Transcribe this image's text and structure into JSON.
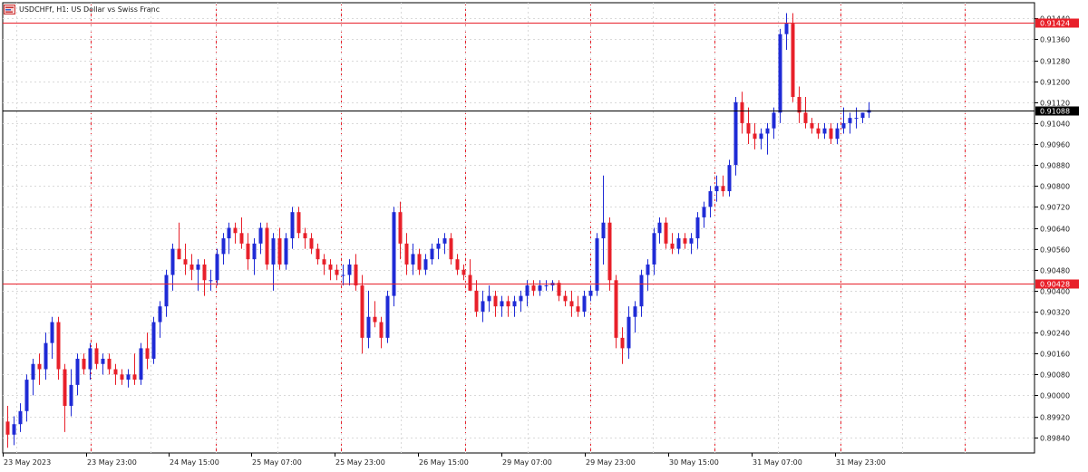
{
  "header": {
    "title": "USDCHFf, H1:  US Dollar vs Swiss Franc",
    "icon": "chart-window-icon"
  },
  "colors": {
    "bull": "#1f2bd6",
    "bear": "#e8202a",
    "level_line": "#e8202a",
    "bid_line": "#000000",
    "period_sep": "#e8202a",
    "grid": "#d9d9d9",
    "axis": "#000000"
  },
  "chart_data": {
    "type": "candlestick",
    "symbol": "USDCHFf",
    "timeframe": "H1",
    "ylim": [
      0.8978,
      0.915
    ],
    "y_ticks": [
      "0.89840",
      "0.89920",
      "0.90000",
      "0.90080",
      "0.90160",
      "0.90240",
      "0.90320",
      "0.90400",
      "0.90480",
      "0.90560",
      "0.90640",
      "0.90720",
      "0.90800",
      "0.90880",
      "0.90960",
      "0.91040",
      "0.91120",
      "0.91200",
      "0.91280",
      "0.91360",
      "0.91440"
    ],
    "x_labels": [
      "23 May 2023",
      "23 May 23:00",
      "24 May 15:00",
      "25 May 07:00",
      "25 May 23:00",
      "26 May 15:00",
      "29 May 07:00",
      "29 May 23:00",
      "30 May 15:00",
      "31 May 07:00",
      "31 May 23:00"
    ],
    "horizontal_levels": [
      {
        "price": 0.91424,
        "label": "0.91424",
        "kind": "level"
      },
      {
        "price": 0.91088,
        "label": "0.91088",
        "kind": "bid"
      },
      {
        "price": 0.90428,
        "label": "0.90428",
        "kind": "level"
      }
    ],
    "ohlc": [
      [
        0.899,
        0.8996,
        0.898,
        0.8985
      ],
      [
        0.8985,
        0.8992,
        0.8981,
        0.8989
      ],
      [
        0.8989,
        0.8997,
        0.8986,
        0.8994
      ],
      [
        0.8994,
        0.9008,
        0.899,
        0.9006
      ],
      [
        0.9006,
        0.9014,
        0.9,
        0.9012
      ],
      [
        0.9012,
        0.9016,
        0.9004,
        0.901
      ],
      [
        0.901,
        0.9024,
        0.9006,
        0.902
      ],
      [
        0.902,
        0.903,
        0.9014,
        0.9028
      ],
      [
        0.9028,
        0.903,
        0.9006,
        0.901
      ],
      [
        0.901,
        0.9012,
        0.8986,
        0.8996
      ],
      [
        0.8996,
        0.901,
        0.8992,
        0.9004
      ],
      [
        0.9004,
        0.9016,
        0.9,
        0.9014
      ],
      [
        0.9014,
        0.9016,
        0.9008,
        0.901
      ],
      [
        0.901,
        0.902,
        0.9006,
        0.9018
      ],
      [
        0.9018,
        0.902,
        0.901,
        0.9012
      ],
      [
        0.9012,
        0.9016,
        0.9008,
        0.9014
      ],
      [
        0.9014,
        0.9016,
        0.9008,
        0.901
      ],
      [
        0.901,
        0.9012,
        0.9004,
        0.9008
      ],
      [
        0.9008,
        0.901,
        0.9004,
        0.9006
      ],
      [
        0.9006,
        0.901,
        0.9003,
        0.9008
      ],
      [
        0.9008,
        0.9016,
        0.9004,
        0.9006
      ],
      [
        0.9006,
        0.902,
        0.9004,
        0.9018
      ],
      [
        0.9018,
        0.9024,
        0.901,
        0.9014
      ],
      [
        0.9014,
        0.903,
        0.9012,
        0.9028
      ],
      [
        0.9028,
        0.9036,
        0.9022,
        0.9034
      ],
      [
        0.9034,
        0.9048,
        0.903,
        0.9046
      ],
      [
        0.9046,
        0.9058,
        0.904,
        0.9056
      ],
      [
        0.9056,
        0.9066,
        0.9052,
        0.9052
      ],
      [
        0.9052,
        0.9058,
        0.9046,
        0.905
      ],
      [
        0.905,
        0.9054,
        0.9044,
        0.9048
      ],
      [
        0.9048,
        0.9052,
        0.904,
        0.905
      ],
      [
        0.905,
        0.9052,
        0.9038,
        0.9044
      ],
      [
        0.9044,
        0.9048,
        0.904,
        0.9044
      ],
      [
        0.9044,
        0.9056,
        0.9042,
        0.9054
      ],
      [
        0.9054,
        0.9062,
        0.905,
        0.906
      ],
      [
        0.906,
        0.9066,
        0.9054,
        0.9064
      ],
      [
        0.9064,
        0.9066,
        0.9058,
        0.9062
      ],
      [
        0.9062,
        0.9068,
        0.9056,
        0.9058
      ],
      [
        0.9058,
        0.9062,
        0.9048,
        0.9052
      ],
      [
        0.9052,
        0.906,
        0.9046,
        0.9058
      ],
      [
        0.9058,
        0.9066,
        0.9054,
        0.9064
      ],
      [
        0.9064,
        0.9066,
        0.9048,
        0.905
      ],
      [
        0.905,
        0.9062,
        0.904,
        0.906
      ],
      [
        0.906,
        0.9064,
        0.9048,
        0.905
      ],
      [
        0.905,
        0.9062,
        0.9048,
        0.906
      ],
      [
        0.906,
        0.9072,
        0.9056,
        0.907
      ],
      [
        0.907,
        0.9072,
        0.906,
        0.9062
      ],
      [
        0.9062,
        0.9064,
        0.9056,
        0.906
      ],
      [
        0.906,
        0.9062,
        0.9054,
        0.9056
      ],
      [
        0.9056,
        0.9058,
        0.905,
        0.9052
      ],
      [
        0.9052,
        0.9054,
        0.9046,
        0.905
      ],
      [
        0.905,
        0.9052,
        0.9044,
        0.9048
      ],
      [
        0.9048,
        0.905,
        0.9044,
        0.9046
      ],
      [
        0.9046,
        0.905,
        0.9042,
        0.9046
      ],
      [
        0.9046,
        0.9052,
        0.9042,
        0.905
      ],
      [
        0.905,
        0.9054,
        0.904,
        0.9042
      ],
      [
        0.9042,
        0.9046,
        0.9016,
        0.9022
      ],
      [
        0.9022,
        0.904,
        0.9018,
        0.903
      ],
      [
        0.903,
        0.9036,
        0.9026,
        0.9028
      ],
      [
        0.9028,
        0.903,
        0.9018,
        0.9022
      ],
      [
        0.9022,
        0.904,
        0.902,
        0.9038
      ],
      [
        0.9038,
        0.9072,
        0.9034,
        0.907
      ],
      [
        0.907,
        0.9074,
        0.9052,
        0.9058
      ],
      [
        0.9058,
        0.9062,
        0.9046,
        0.905
      ],
      [
        0.905,
        0.9058,
        0.9046,
        0.9054
      ],
      [
        0.9054,
        0.9056,
        0.9046,
        0.9048
      ],
      [
        0.9048,
        0.9054,
        0.9046,
        0.9052
      ],
      [
        0.9052,
        0.9058,
        0.905,
        0.9056
      ],
      [
        0.9056,
        0.906,
        0.9052,
        0.9058
      ],
      [
        0.9058,
        0.9062,
        0.9054,
        0.906
      ],
      [
        0.906,
        0.9062,
        0.905,
        0.9052
      ],
      [
        0.9052,
        0.9054,
        0.9046,
        0.9048
      ],
      [
        0.9048,
        0.905,
        0.9044,
        0.9046
      ],
      [
        0.9046,
        0.9052,
        0.904,
        0.904
      ],
      [
        0.904,
        0.9044,
        0.903,
        0.9032
      ],
      [
        0.9032,
        0.904,
        0.9028,
        0.9036
      ],
      [
        0.9036,
        0.9042,
        0.9032,
        0.9038
      ],
      [
        0.9038,
        0.904,
        0.903,
        0.9034
      ],
      [
        0.9034,
        0.9038,
        0.903,
        0.9036
      ],
      [
        0.9036,
        0.9038,
        0.903,
        0.9034
      ],
      [
        0.9034,
        0.9038,
        0.903,
        0.9036
      ],
      [
        0.9036,
        0.904,
        0.9032,
        0.9038
      ],
      [
        0.9038,
        0.9044,
        0.9034,
        0.9042
      ],
      [
        0.9042,
        0.9044,
        0.9038,
        0.904
      ],
      [
        0.904,
        0.9044,
        0.9038,
        0.9042
      ],
      [
        0.9042,
        0.9044,
        0.904,
        0.9042
      ],
      [
        0.9042,
        0.9044,
        0.904,
        0.9043
      ],
      [
        0.9043,
        0.9044,
        0.9036,
        0.9038
      ],
      [
        0.9038,
        0.904,
        0.9034,
        0.9036
      ],
      [
        0.9036,
        0.904,
        0.903,
        0.9034
      ],
      [
        0.9034,
        0.9038,
        0.903,
        0.9032
      ],
      [
        0.9032,
        0.904,
        0.903,
        0.9038
      ],
      [
        0.9038,
        0.9042,
        0.9036,
        0.904
      ],
      [
        0.904,
        0.9062,
        0.9038,
        0.906
      ],
      [
        0.906,
        0.9084,
        0.905,
        0.9066
      ],
      [
        0.9066,
        0.9068,
        0.904,
        0.9044
      ],
      [
        0.9044,
        0.9046,
        0.9018,
        0.9022
      ],
      [
        0.9022,
        0.9026,
        0.9012,
        0.9018
      ],
      [
        0.9018,
        0.9034,
        0.9014,
        0.903
      ],
      [
        0.903,
        0.9036,
        0.9024,
        0.9034
      ],
      [
        0.9034,
        0.9048,
        0.903,
        0.9046
      ],
      [
        0.9046,
        0.9052,
        0.904,
        0.905
      ],
      [
        0.905,
        0.9064,
        0.9046,
        0.9062
      ],
      [
        0.9062,
        0.9068,
        0.9058,
        0.9066
      ],
      [
        0.9066,
        0.9068,
        0.9056,
        0.9058
      ],
      [
        0.9058,
        0.9062,
        0.9054,
        0.9056
      ],
      [
        0.9056,
        0.9062,
        0.9054,
        0.906
      ],
      [
        0.906,
        0.9062,
        0.9056,
        0.9058
      ],
      [
        0.9058,
        0.9062,
        0.9054,
        0.906
      ],
      [
        0.906,
        0.907,
        0.9056,
        0.9068
      ],
      [
        0.9068,
        0.9074,
        0.9064,
        0.9072
      ],
      [
        0.9072,
        0.908,
        0.9068,
        0.9078
      ],
      [
        0.9078,
        0.9084,
        0.9074,
        0.908
      ],
      [
        0.908,
        0.9084,
        0.9076,
        0.9078
      ],
      [
        0.9078,
        0.909,
        0.9076,
        0.9088
      ],
      [
        0.9088,
        0.9114,
        0.9084,
        0.9112
      ],
      [
        0.9112,
        0.9116,
        0.91,
        0.9104
      ],
      [
        0.9104,
        0.911,
        0.9096,
        0.91
      ],
      [
        0.91,
        0.9104,
        0.9094,
        0.9098
      ],
      [
        0.9098,
        0.9102,
        0.9094,
        0.91
      ],
      [
        0.91,
        0.9104,
        0.9092,
        0.9102
      ],
      [
        0.9102,
        0.911,
        0.9098,
        0.9108
      ],
      [
        0.9108,
        0.914,
        0.9104,
        0.9138
      ],
      [
        0.9138,
        0.9146,
        0.9132,
        0.9142
      ],
      [
        0.9142,
        0.9146,
        0.9112,
        0.9114
      ],
      [
        0.9114,
        0.9118,
        0.9104,
        0.9108
      ],
      [
        0.9108,
        0.9114,
        0.9102,
        0.9104
      ],
      [
        0.9104,
        0.9106,
        0.91,
        0.9102
      ],
      [
        0.9102,
        0.9104,
        0.9098,
        0.91
      ],
      [
        0.91,
        0.9104,
        0.9098,
        0.9102
      ],
      [
        0.9102,
        0.9104,
        0.9096,
        0.9098
      ],
      [
        0.9098,
        0.9104,
        0.9096,
        0.9102
      ],
      [
        0.9102,
        0.911,
        0.91,
        0.9104
      ],
      [
        0.9104,
        0.9108,
        0.91,
        0.9106
      ],
      [
        0.9106,
        0.911,
        0.9102,
        0.9106
      ],
      [
        0.9106,
        0.9108,
        0.9104,
        0.9108
      ],
      [
        0.9108,
        0.9112,
        0.9106,
        0.9109
      ]
    ]
  }
}
